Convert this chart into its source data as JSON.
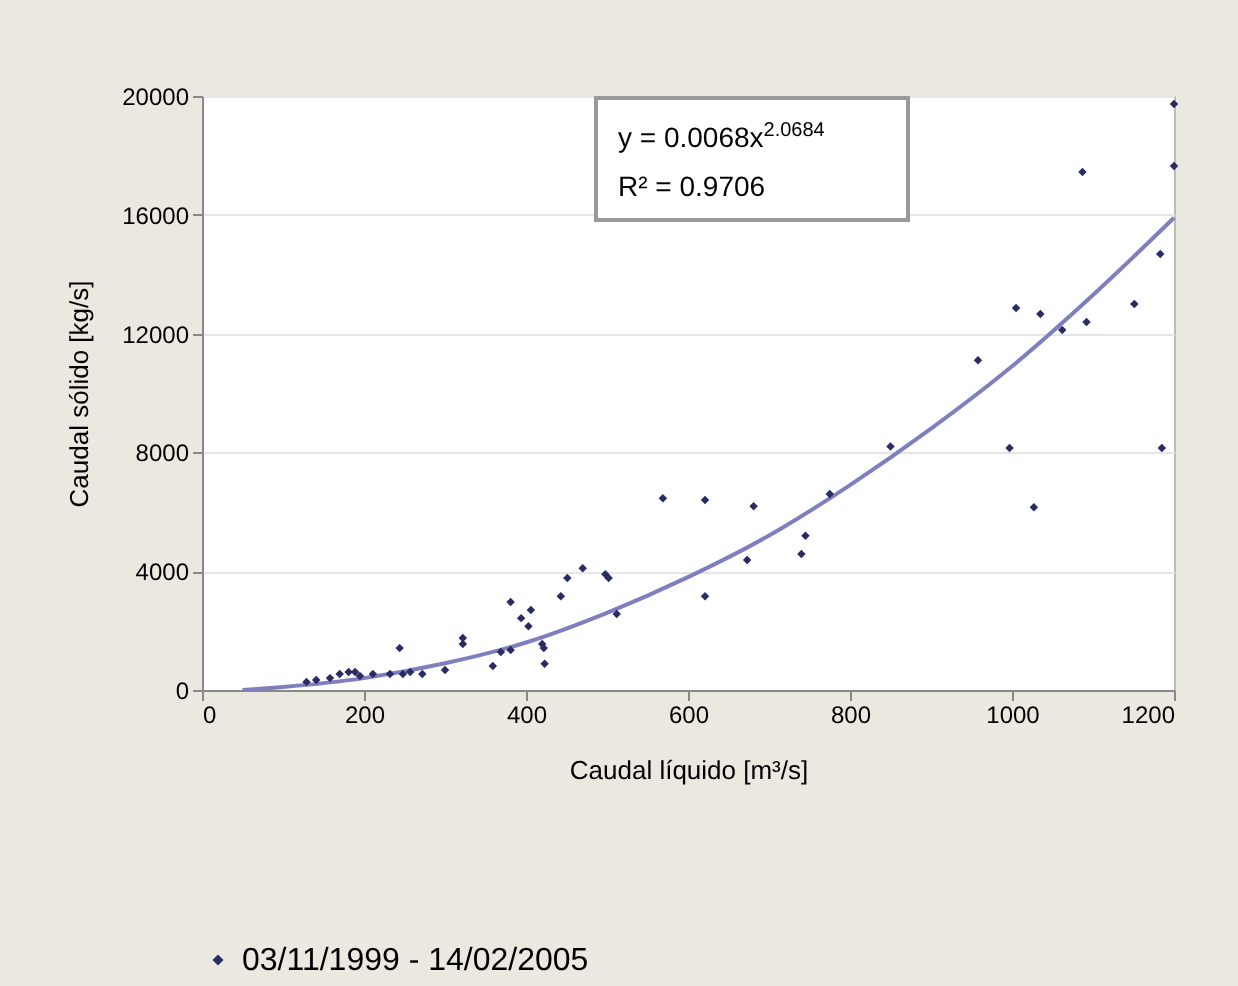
{
  "chart_data": {
    "type": "scatter",
    "xlabel": "Caudal líquido [m³/s]",
    "ylabel": "Caudal sólido [kg/s]",
    "xlim": [
      0,
      1200
    ],
    "xticks": [
      0,
      200,
      400,
      600,
      800,
      1000,
      1200
    ],
    "ylim": [
      0,
      20000
    ],
    "yticks": [
      0,
      4000,
      8000,
      12000,
      16000,
      20000
    ],
    "grid": "y",
    "legend": "bottom",
    "annotations": [
      "y = 0.0068x$^{2.0684}$",
      "R² = 0.9706"
    ],
    "series": [
      {
        "name": "03/11/1999 - 14/02/2005",
        "color": "#2b2b63",
        "marker": "diamond",
        "x": [
          129,
          141,
          158,
          170,
          181,
          189,
          195,
          211,
          232,
          244,
          248,
          257,
          272,
          300,
          322,
          322,
          359,
          369,
          381,
          381,
          394,
          403,
          406,
          420,
          422,
          423,
          443,
          451,
          470,
          498,
          502,
          512,
          569,
          621,
          621,
          673,
          681,
          740,
          745,
          775,
          850,
          958,
          997,
          1005,
          1027,
          1035,
          1062,
          1087,
          1092,
          1151,
          1183,
          1185,
          1200,
          1200
        ],
        "values": [
          270,
          340,
          400,
          540,
          610,
          610,
          470,
          540,
          540,
          1410,
          540,
          610,
          540,
          670,
          1750,
          1550,
          810,
          1280,
          1350,
          2960,
          2420,
          2150,
          2690,
          1550,
          1410,
          880,
          3160,
          3770,
          4100,
          3900,
          3770,
          2560,
          6460,
          6400,
          3160,
          4380,
          6190,
          4580,
          5190,
          6600,
          8200,
          11100,
          8150,
          12860,
          6150,
          12660,
          12120,
          17440,
          12390,
          13000,
          14680,
          8150,
          19730,
          17640
        ]
      },
      {
        "type": "line",
        "color": "#7f7fbf",
        "x": [
          50,
          100,
          200,
          300,
          400,
          500,
          600,
          700,
          800,
          900,
          1000,
          1100,
          1200
        ],
        "values": [
          0,
          100,
          400,
          900,
          1600,
          2600,
          3800,
          5200,
          6900,
          8800,
          10900,
          13300,
          15900
        ]
      }
    ]
  }
}
